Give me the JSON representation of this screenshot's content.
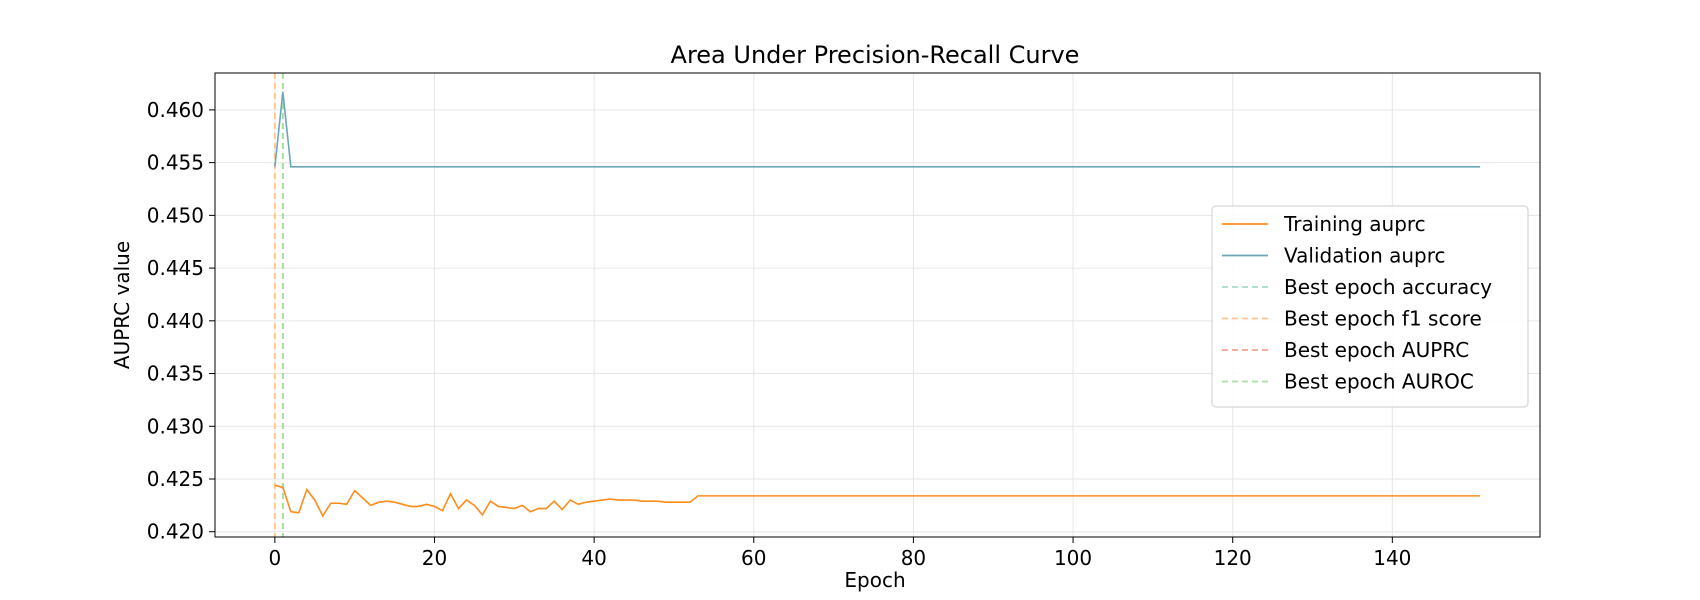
{
  "chart_data": {
    "type": "line",
    "title": "Area Under Precision-Recall Curve",
    "xlabel": "Epoch",
    "ylabel": "AUPRC value",
    "xlim": [
      -7.5,
      158.5
    ],
    "ylim": [
      0.4195,
      0.4635
    ],
    "xticks": [
      0,
      20,
      40,
      60,
      80,
      100,
      120,
      140
    ],
    "yticks": [
      0.42,
      0.425,
      0.43,
      0.435,
      0.44,
      0.445,
      0.45,
      0.455,
      0.46
    ],
    "grid": true,
    "legend_position": "center-right",
    "series": [
      {
        "name": "Training auprc",
        "color": "#ff8c1a",
        "x_start": 0,
        "x_step": 1,
        "head_values": [
          0.4244,
          0.4242,
          0.4219,
          0.4218,
          0.424,
          0.423,
          0.4215,
          0.4227,
          0.4227,
          0.4226,
          0.4239,
          0.4232,
          0.4225,
          0.4228,
          0.4229,
          0.4228,
          0.4226,
          0.4224,
          0.4224,
          0.4226,
          0.4224,
          0.422,
          0.4236,
          0.4222,
          0.423,
          0.4225,
          0.4216,
          0.4229,
          0.4224,
          0.4223,
          0.4222,
          0.4225,
          0.4219,
          0.4222,
          0.4222,
          0.4229,
          0.4221,
          0.423,
          0.4226,
          0.4228,
          0.4229,
          0.423,
          0.4231,
          0.423,
          0.423,
          0.423,
          0.4229,
          0.4229,
          0.4229,
          0.4228,
          0.4228,
          0.4228,
          0.4228,
          0.4234
        ],
        "tail_value": 0.4234,
        "x_end": 151
      },
      {
        "name": "Validation auprc",
        "color": "#6aa6b8",
        "x_start": 0,
        "x_step": 1,
        "head_values": [
          0.4546,
          0.4617,
          0.4546
        ],
        "tail_value": 0.4546,
        "x_end": 151
      }
    ],
    "vlines": [
      {
        "name": "Best epoch accuracy",
        "x": 1,
        "color": "#a8dcc8"
      },
      {
        "name": "Best epoch f1 score",
        "x": 0,
        "color": "#ffc48a"
      },
      {
        "name": "Best epoch AUPRC",
        "x": 1,
        "color": "#f4a08a"
      },
      {
        "name": "Best epoch AUROC",
        "x": 1,
        "color": "#a8e0a0"
      }
    ],
    "legend": [
      {
        "label": "Training auprc",
        "color": "#ff8c1a",
        "dashed": false
      },
      {
        "label": "Validation auprc",
        "color": "#6aa6b8",
        "dashed": false
      },
      {
        "label": "Best epoch accuracy",
        "color": "#a8dcc8",
        "dashed": true
      },
      {
        "label": "Best epoch f1 score",
        "color": "#ffc48a",
        "dashed": true
      },
      {
        "label": "Best epoch AUPRC",
        "color": "#f4a08a",
        "dashed": true
      },
      {
        "label": "Best epoch AUROC",
        "color": "#a8e0a0",
        "dashed": true
      }
    ]
  }
}
